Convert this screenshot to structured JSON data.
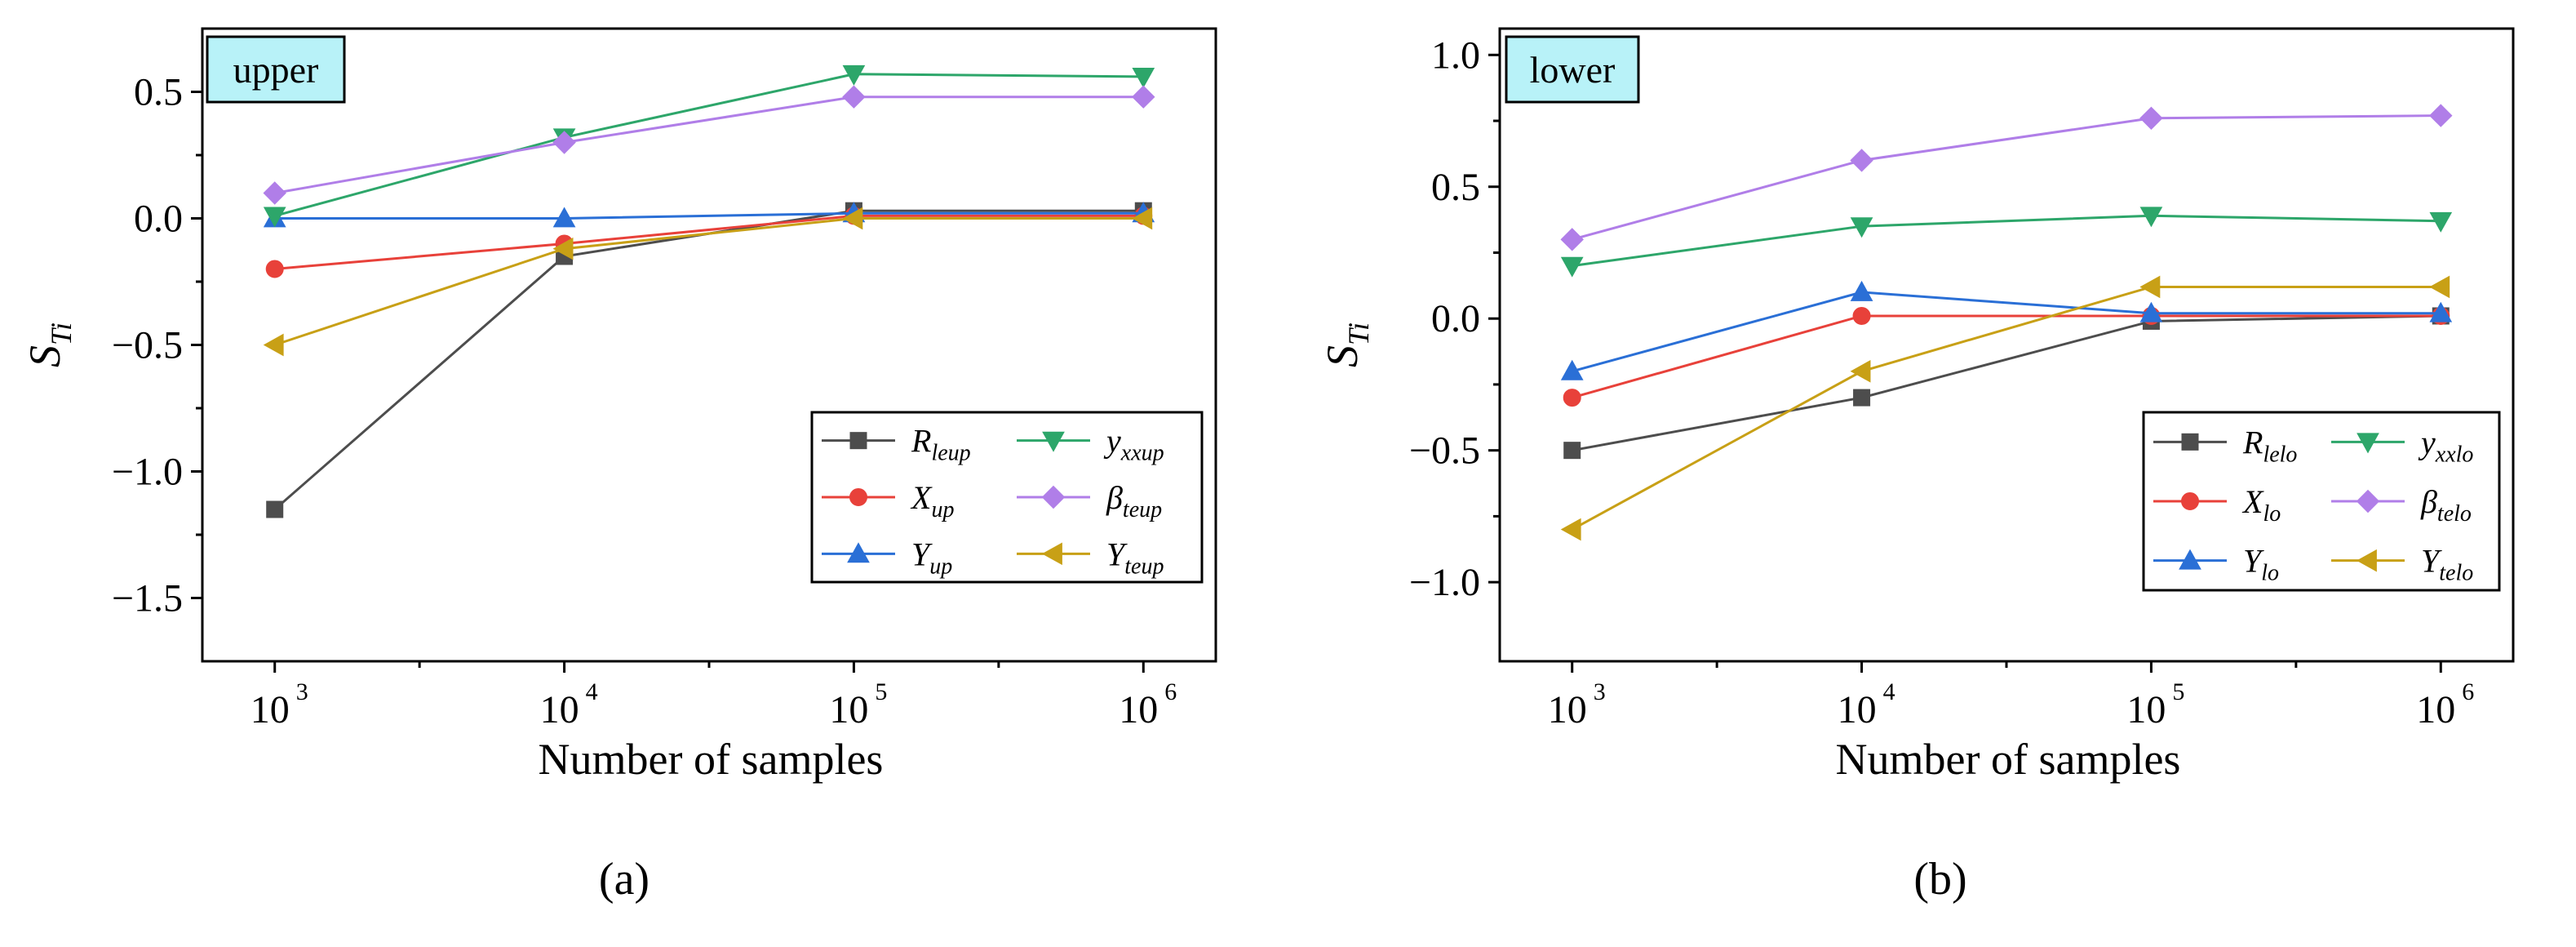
{
  "figure": {
    "labels": [
      "(a)",
      "(b)"
    ]
  },
  "chart_data": [
    {
      "type": "line",
      "tag": "upper",
      "xlabel": "Number of samples",
      "ylabel": "S",
      "ylabel_sub": "Ti",
      "x_scale": "log10",
      "x": [
        3,
        4,
        5,
        6
      ],
      "x_tick_labels": [
        {
          "base": "10",
          "exp": "3"
        },
        {
          "base": "10",
          "exp": "4"
        },
        {
          "base": "10",
          "exp": "5"
        },
        {
          "base": "10",
          "exp": "6"
        }
      ],
      "xlim": [
        2.75,
        6.25
      ],
      "ylim": [
        -1.75,
        0.75
      ],
      "y_ticks": [
        -1.5,
        -1.0,
        -0.5,
        0.0,
        0.5
      ],
      "y_tick_labels": [
        "−1.5",
        "−1.0",
        "−0.5",
        "0.0",
        "0.5"
      ],
      "legend_position": "bottom-right",
      "legend_columns": 2,
      "series": [
        {
          "name": "R",
          "sub": "leup",
          "marker": "square",
          "color": "#4d4d4d",
          "values": [
            -1.15,
            -0.15,
            0.03,
            0.03
          ]
        },
        {
          "name": "X",
          "sub": "up",
          "marker": "circle",
          "color": "#e8413a",
          "values": [
            -0.2,
            -0.1,
            0.01,
            0.01
          ]
        },
        {
          "name": "Y",
          "sub": "up",
          "marker": "triangle-up",
          "color": "#2a6fd6",
          "values": [
            0.0,
            0.0,
            0.02,
            0.02
          ]
        },
        {
          "name": "y",
          "sub": "xxup",
          "marker": "triangle-down",
          "color": "#2da66a",
          "values": [
            0.01,
            0.32,
            0.57,
            0.56
          ]
        },
        {
          "name": "β",
          "sub": "teup",
          "marker": "diamond",
          "color": "#b07ee8",
          "values": [
            0.1,
            0.3,
            0.48,
            0.48
          ]
        },
        {
          "name": "Y",
          "sub": "teup",
          "marker": "triangle-left",
          "color": "#c8a016",
          "values": [
            -0.5,
            -0.12,
            0.0,
            0.0
          ]
        }
      ]
    },
    {
      "type": "line",
      "tag": "lower",
      "xlabel": "Number of samples",
      "ylabel": "S",
      "ylabel_sub": "Ti",
      "x_scale": "log10",
      "x": [
        3,
        4,
        5,
        6
      ],
      "x_tick_labels": [
        {
          "base": "10",
          "exp": "3"
        },
        {
          "base": "10",
          "exp": "4"
        },
        {
          "base": "10",
          "exp": "5"
        },
        {
          "base": "10",
          "exp": "6"
        }
      ],
      "xlim": [
        2.75,
        6.25
      ],
      "ylim": [
        -1.3,
        1.1
      ],
      "y_ticks": [
        -1.0,
        -0.5,
        0.0,
        0.5,
        1.0
      ],
      "y_tick_labels": [
        "−1.0",
        "−0.5",
        "0.0",
        "0.5",
        "1.0"
      ],
      "legend_position": "bottom-right",
      "legend_columns": 2,
      "series": [
        {
          "name": "R",
          "sub": "lelo",
          "marker": "square",
          "color": "#4d4d4d",
          "values": [
            -0.5,
            -0.3,
            -0.01,
            0.01
          ]
        },
        {
          "name": "X",
          "sub": "lo",
          "marker": "circle",
          "color": "#e8413a",
          "values": [
            -0.3,
            0.01,
            0.01,
            0.01
          ]
        },
        {
          "name": "Y",
          "sub": "lo",
          "marker": "triangle-up",
          "color": "#2a6fd6",
          "values": [
            -0.2,
            0.1,
            0.02,
            0.02
          ]
        },
        {
          "name": "y",
          "sub": "xxlo",
          "marker": "triangle-down",
          "color": "#2da66a",
          "values": [
            0.2,
            0.35,
            0.39,
            0.37
          ]
        },
        {
          "name": "β",
          "sub": "telo",
          "marker": "diamond",
          "color": "#b07ee8",
          "values": [
            0.3,
            0.6,
            0.76,
            0.77
          ]
        },
        {
          "name": "Y",
          "sub": "telo",
          "marker": "triangle-left",
          "color": "#c8a016",
          "values": [
            -0.8,
            -0.2,
            0.12,
            0.12
          ]
        }
      ]
    }
  ]
}
